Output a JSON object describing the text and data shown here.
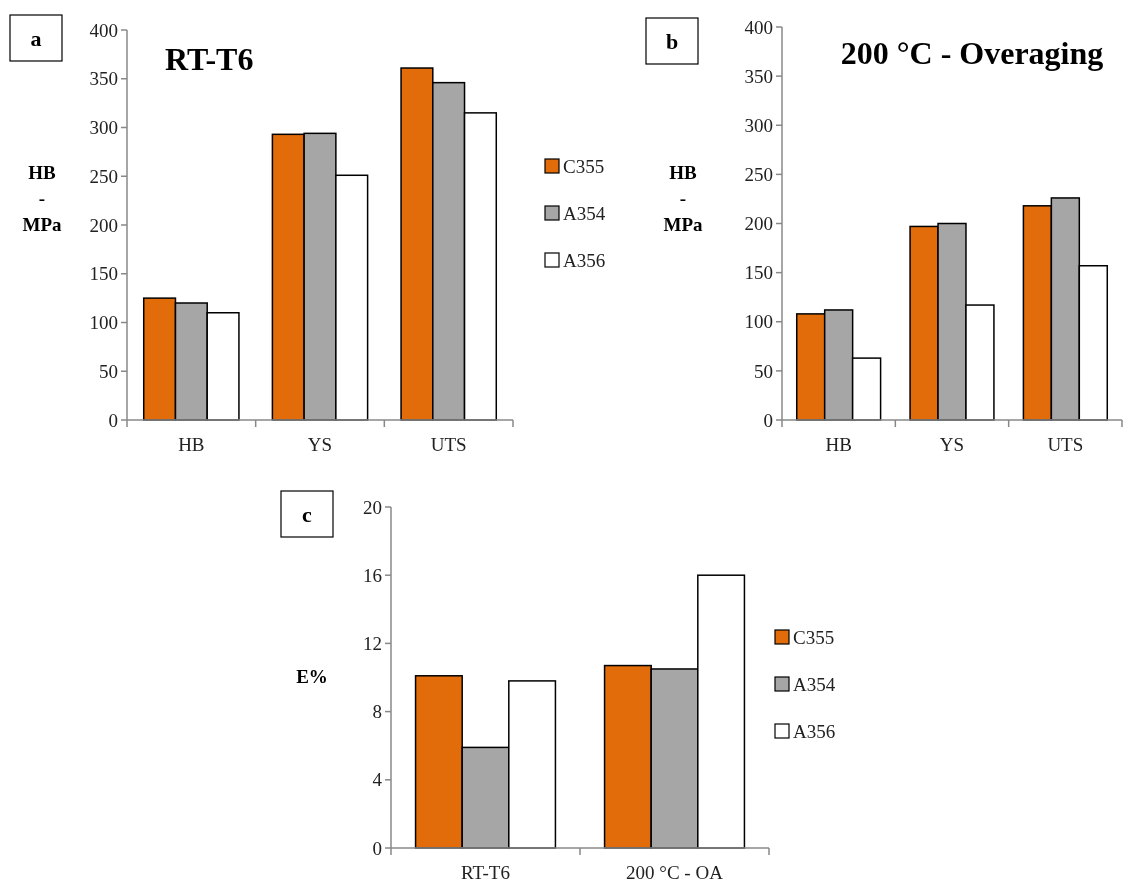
{
  "chart_data": [
    {
      "type": "bar",
      "title": "RT-T6",
      "ylabel": "HB - MPa",
      "categories": [
        "HB",
        "YS",
        "UTS"
      ],
      "series": [
        {
          "name": "C355",
          "color": "#e36c0a",
          "values": [
            125,
            293,
            361
          ]
        },
        {
          "name": "A354",
          "color": "#a6a6a6",
          "values": [
            120,
            294,
            346
          ]
        },
        {
          "name": "A356",
          "color": "#ffffff",
          "values": [
            110,
            251,
            315
          ]
        }
      ],
      "ylim": [
        0,
        400
      ],
      "yticks": [
        0,
        50,
        100,
        150,
        200,
        250,
        300,
        350,
        400
      ],
      "legend": "right",
      "grid": false,
      "annotations": [
        "a"
      ]
    },
    {
      "type": "bar",
      "title": "200 °C - Overaging",
      "ylabel": "HB - MPa",
      "categories": [
        "HB",
        "YS",
        "UTS"
      ],
      "series": [
        {
          "color": "#e36c0a",
          "values": [
            108,
            197,
            218
          ]
        },
        {
          "color": "#a6a6a6",
          "values": [
            112,
            200,
            226
          ]
        },
        {
          "color": "#ffffff",
          "values": [
            63,
            117,
            157
          ]
        }
      ],
      "ylim": [
        0,
        400
      ],
      "yticks": [
        0,
        50,
        100,
        150,
        200,
        250,
        300,
        350,
        400
      ],
      "grid": false,
      "annotations": [
        "b"
      ]
    },
    {
      "type": "bar",
      "ylabel": "E%",
      "categories": [
        "RT-T6",
        "200 °C - OA"
      ],
      "series": [
        {
          "name": "C355",
          "color": "#e36c0a",
          "values": [
            10.1,
            10.7
          ]
        },
        {
          "name": "A354",
          "color": "#a6a6a6",
          "values": [
            5.9,
            10.5
          ]
        },
        {
          "name": "A356",
          "color": "#ffffff",
          "values": [
            9.8,
            16.0
          ]
        }
      ],
      "ylim": [
        0,
        20
      ],
      "yticks": [
        0,
        4,
        8,
        12,
        16,
        20
      ],
      "legend": "right",
      "grid": false,
      "annotations": [
        "c"
      ]
    }
  ]
}
